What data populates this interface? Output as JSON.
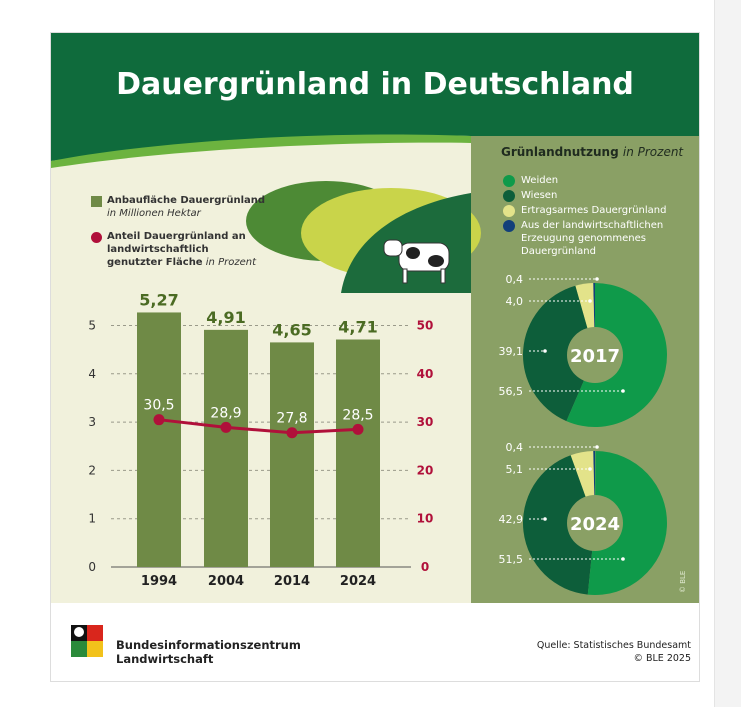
{
  "title": "Dauergrünland in Deutschland",
  "legend": {
    "bar_label": "Anbaufläche Dauergrünland",
    "bar_unit": "in Millionen Hektar",
    "line_label": "Anteil Dauergrünland an landwirtschaftlich genutzter Fläche",
    "line_unit": "in Prozent"
  },
  "colors": {
    "header": "#0f6b3c",
    "cream": "#f1f1dc",
    "bar": "#6f8a46",
    "line": "#b0103a",
    "olive": "#8aa065",
    "weiden": "#0f9a4a",
    "wiesen": "#0d5e3a",
    "ertrag": "#e3e38a",
    "aus": "#123f7a"
  },
  "chart_data": [
    {
      "type": "bar+line",
      "categories": [
        "1994",
        "2004",
        "2014",
        "2024"
      ],
      "series": [
        {
          "name": "Anbaufläche Dauergrünland (Mio. ha)",
          "type": "bar",
          "values": [
            5.27,
            4.91,
            4.65,
            4.71
          ],
          "labels": [
            "5,27",
            "4,91",
            "4,65",
            "4,71"
          ]
        },
        {
          "name": "Anteil Dauergrünland (%)",
          "type": "line",
          "values": [
            30.5,
            28.9,
            27.8,
            28.5
          ],
          "labels": [
            "30,5",
            "28,9",
            "27,8",
            "28,5"
          ]
        }
      ],
      "y_left": {
        "ticks": [
          "0",
          "1",
          "2",
          "3",
          "4",
          "5"
        ],
        "ylim": [
          0,
          5
        ]
      },
      "y_right": {
        "ticks": [
          "0",
          "10",
          "20",
          "30",
          "40",
          "50"
        ],
        "ylim": [
          0,
          50
        ]
      },
      "grid": true
    },
    {
      "type": "pie",
      "title": "Grünlandnutzung",
      "title_unit": "in Prozent",
      "legend": [
        "Weiden",
        "Wiesen",
        "Ertragsarmes Dauergrünland",
        "Aus der landwirtschaftlichen Erzeugung genommenes Dauergrünland"
      ],
      "pies": [
        {
          "year": "2017",
          "values": {
            "aus": 0.4,
            "ertrag": 4.0,
            "wiesen": 39.1,
            "weiden": 56.5
          },
          "labels": [
            "0,4",
            "4,0",
            "39,1",
            "56,5"
          ]
        },
        {
          "year": "2024",
          "values": {
            "aus": 0.4,
            "ertrag": 5.1,
            "wiesen": 42.9,
            "weiden": 51.5
          },
          "labels": [
            "0,4",
            "5,1",
            "42,9",
            "51,5"
          ]
        }
      ]
    }
  ],
  "credit": "© BLE",
  "footer": {
    "org_line1": "Bundesinformationszentrum",
    "org_line2": "Landwirtschaft",
    "source": "Quelle: Statistisches Bundesamt",
    "copyright": "© BLE 2025"
  }
}
